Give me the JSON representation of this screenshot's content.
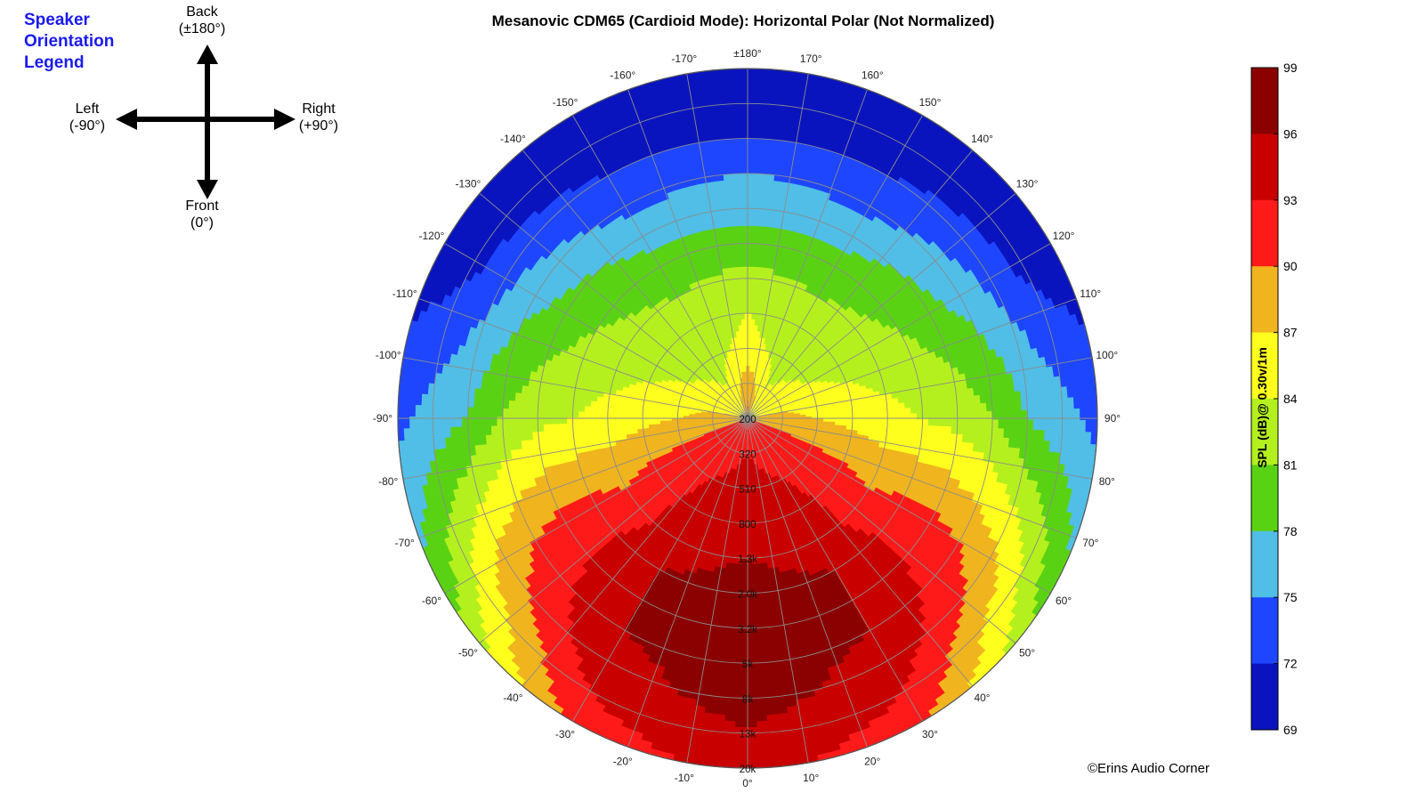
{
  "orientation_legend": {
    "title_lines": [
      "Speaker",
      "Orientation",
      "Legend"
    ],
    "back": {
      "name": "Back",
      "angle": "(±180°)"
    },
    "front": {
      "name": "Front",
      "angle": "(0°)"
    },
    "left": {
      "name": "Left",
      "angle": "(-90°)"
    },
    "right": {
      "name": "Right",
      "angle": "(+90°)"
    }
  },
  "copyright": "©Erins Audio Corner",
  "chart_data": {
    "type": "heatmap",
    "subtype": "polar",
    "title": "Mesanovic CDM65 (Cardioid Mode): Horizontal Polar (Not Normalized)",
    "angular_tick_labels": [
      "0°",
      "10°",
      "20°",
      "30°",
      "40°",
      "50°",
      "60°",
      "70°",
      "80°",
      "90°",
      "100°",
      "110°",
      "120°",
      "130°",
      "140°",
      "150°",
      "160°",
      "170°",
      "±180°",
      "-170°",
      "-160°",
      "-150°",
      "-140°",
      "-130°",
      "-120°",
      "-110°",
      "-100°",
      "-90°",
      "-80°",
      "-70°",
      "-60°",
      "-50°",
      "-40°",
      "-30°",
      "-20°",
      "-10°"
    ],
    "radial_tick_labels": [
      "200",
      "320",
      "510",
      "800",
      "1.3k",
      "2.0k",
      "3.2k",
      "5k",
      "8k",
      "13k",
      "20k"
    ],
    "radial_axis": "frequency (Hz), log scale, 200 Hz at center to 20 kHz at rim",
    "angle_zero_direction": "bottom",
    "colorbar": {
      "label": "SPL (dB)@ 0.30v/1m",
      "ticks": [
        99,
        96,
        93,
        90,
        87,
        84,
        81,
        78,
        75,
        72,
        69
      ],
      "range": [
        69,
        99
      ],
      "colors": [
        "#8b0000",
        "#c80000",
        "#ff1a1a",
        "#f0b41e",
        "#ffff1e",
        "#b4f01e",
        "#5ad214",
        "#50bee6",
        "#1e46ff",
        "#0a14be"
      ]
    },
    "spl_profile": {
      "note": "approximate SPL (dB) vs frequency at selected angles, read from color bands",
      "frequencies": [
        "200",
        "320",
        "510",
        "800",
        "1.3k",
        "2.0k",
        "3.2k",
        "5k",
        "8k",
        "13k",
        "20k"
      ],
      "series": [
        {
          "angle": "0°",
          "values": [
            92,
            93,
            94,
            95,
            96,
            97,
            97,
            97,
            97,
            96,
            94
          ]
        },
        {
          "angle": "±30°",
          "values": [
            92,
            92,
            93,
            94,
            95,
            96,
            96,
            96,
            95,
            93,
            91
          ]
        },
        {
          "angle": "±60°",
          "values": [
            91,
            91,
            91,
            91,
            90,
            91,
            91,
            90,
            88,
            84,
            79
          ]
        },
        {
          "angle": "±90°",
          "values": [
            88,
            88,
            87,
            86,
            85,
            84,
            83,
            81,
            78,
            76,
            74
          ]
        },
        {
          "angle": "±120°",
          "values": [
            86,
            85,
            84,
            83,
            82,
            81,
            79,
            77,
            74,
            71,
            70
          ]
        },
        {
          "angle": "±150°",
          "values": [
            86,
            84,
            83,
            82,
            81,
            79,
            77,
            74,
            72,
            70,
            70
          ]
        },
        {
          "angle": "±180°",
          "values": [
            91,
            89,
            85,
            84,
            82,
            79,
            77,
            75,
            72,
            70,
            70
          ]
        }
      ]
    }
  }
}
